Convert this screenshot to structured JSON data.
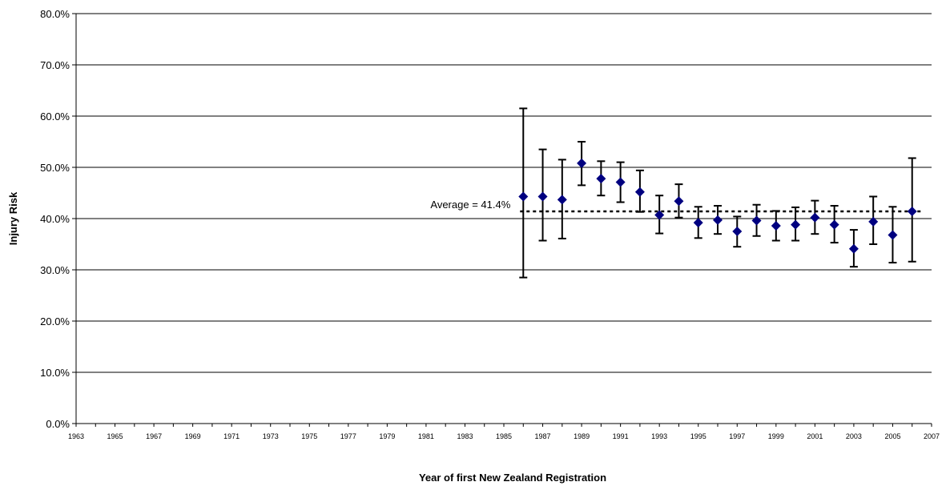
{
  "chart_data": {
    "type": "scatter",
    "title": "",
    "xlabel": "Year of first New Zealand Registration",
    "ylabel": "Injury Risk",
    "xlim": [
      1963,
      2007
    ],
    "ylim": [
      0,
      80
    ],
    "x_ticks": [
      1963,
      1965,
      1967,
      1969,
      1971,
      1973,
      1975,
      1977,
      1979,
      1981,
      1983,
      1985,
      1987,
      1989,
      1991,
      1993,
      1995,
      1997,
      1999,
      2001,
      2003,
      2005,
      2007
    ],
    "x_tick_labels": [
      "1963",
      "1965",
      "1967",
      "1969",
      "1971",
      "1973",
      "1975",
      "1977",
      "1979",
      "1981",
      "1983",
      "1985",
      "1987",
      "1989",
      "1991",
      "1993",
      "1995",
      "1997",
      "1999",
      "2001",
      "2003",
      "2005",
      "2007"
    ],
    "y_ticks": [
      0,
      10,
      20,
      30,
      40,
      50,
      60,
      70,
      80
    ],
    "y_tick_labels": [
      "0.0%",
      "10.0%",
      "20.0%",
      "30.0%",
      "40.0%",
      "50.0%",
      "60.0%",
      "70.0%",
      "80.0%"
    ],
    "grid": "horizontal",
    "marker_color": "#000080",
    "error_bar_color": "#000000",
    "points": [
      {
        "x": 1986,
        "y": 44.3,
        "low": 28.5,
        "high": 61.5
      },
      {
        "x": 1987,
        "y": 44.3,
        "low": 35.7,
        "high": 53.5
      },
      {
        "x": 1988,
        "y": 43.7,
        "low": 36.1,
        "high": 51.5
      },
      {
        "x": 1989,
        "y": 50.8,
        "low": 46.5,
        "high": 55.0
      },
      {
        "x": 1990,
        "y": 47.8,
        "low": 44.5,
        "high": 51.2
      },
      {
        "x": 1991,
        "y": 47.1,
        "low": 43.2,
        "high": 51.0
      },
      {
        "x": 1992,
        "y": 45.2,
        "low": 41.3,
        "high": 49.4
      },
      {
        "x": 1993,
        "y": 40.7,
        "low": 37.1,
        "high": 44.5
      },
      {
        "x": 1994,
        "y": 43.4,
        "low": 40.2,
        "high": 46.7
      },
      {
        "x": 1995,
        "y": 39.2,
        "low": 36.2,
        "high": 42.3
      },
      {
        "x": 1996,
        "y": 39.7,
        "low": 37.0,
        "high": 42.5
      },
      {
        "x": 1997,
        "y": 37.5,
        "low": 34.5,
        "high": 40.4
      },
      {
        "x": 1998,
        "y": 39.6,
        "low": 36.6,
        "high": 42.7
      },
      {
        "x": 1999,
        "y": 38.6,
        "low": 35.7,
        "high": 41.5
      },
      {
        "x": 2000,
        "y": 38.8,
        "low": 35.7,
        "high": 42.2
      },
      {
        "x": 2001,
        "y": 40.2,
        "low": 37.0,
        "high": 43.5
      },
      {
        "x": 2002,
        "y": 38.8,
        "low": 35.3,
        "high": 42.5
      },
      {
        "x": 2003,
        "y": 34.1,
        "low": 30.6,
        "high": 37.8
      },
      {
        "x": 2004,
        "y": 39.4,
        "low": 35.0,
        "high": 44.3
      },
      {
        "x": 2005,
        "y": 36.8,
        "low": 31.4,
        "high": 42.3
      },
      {
        "x": 2006,
        "y": 41.4,
        "low": 31.6,
        "high": 51.8
      }
    ],
    "average": {
      "value": 41.4,
      "x_start": 1986,
      "x_end": 2006,
      "label": "Average = 41.4%"
    }
  }
}
